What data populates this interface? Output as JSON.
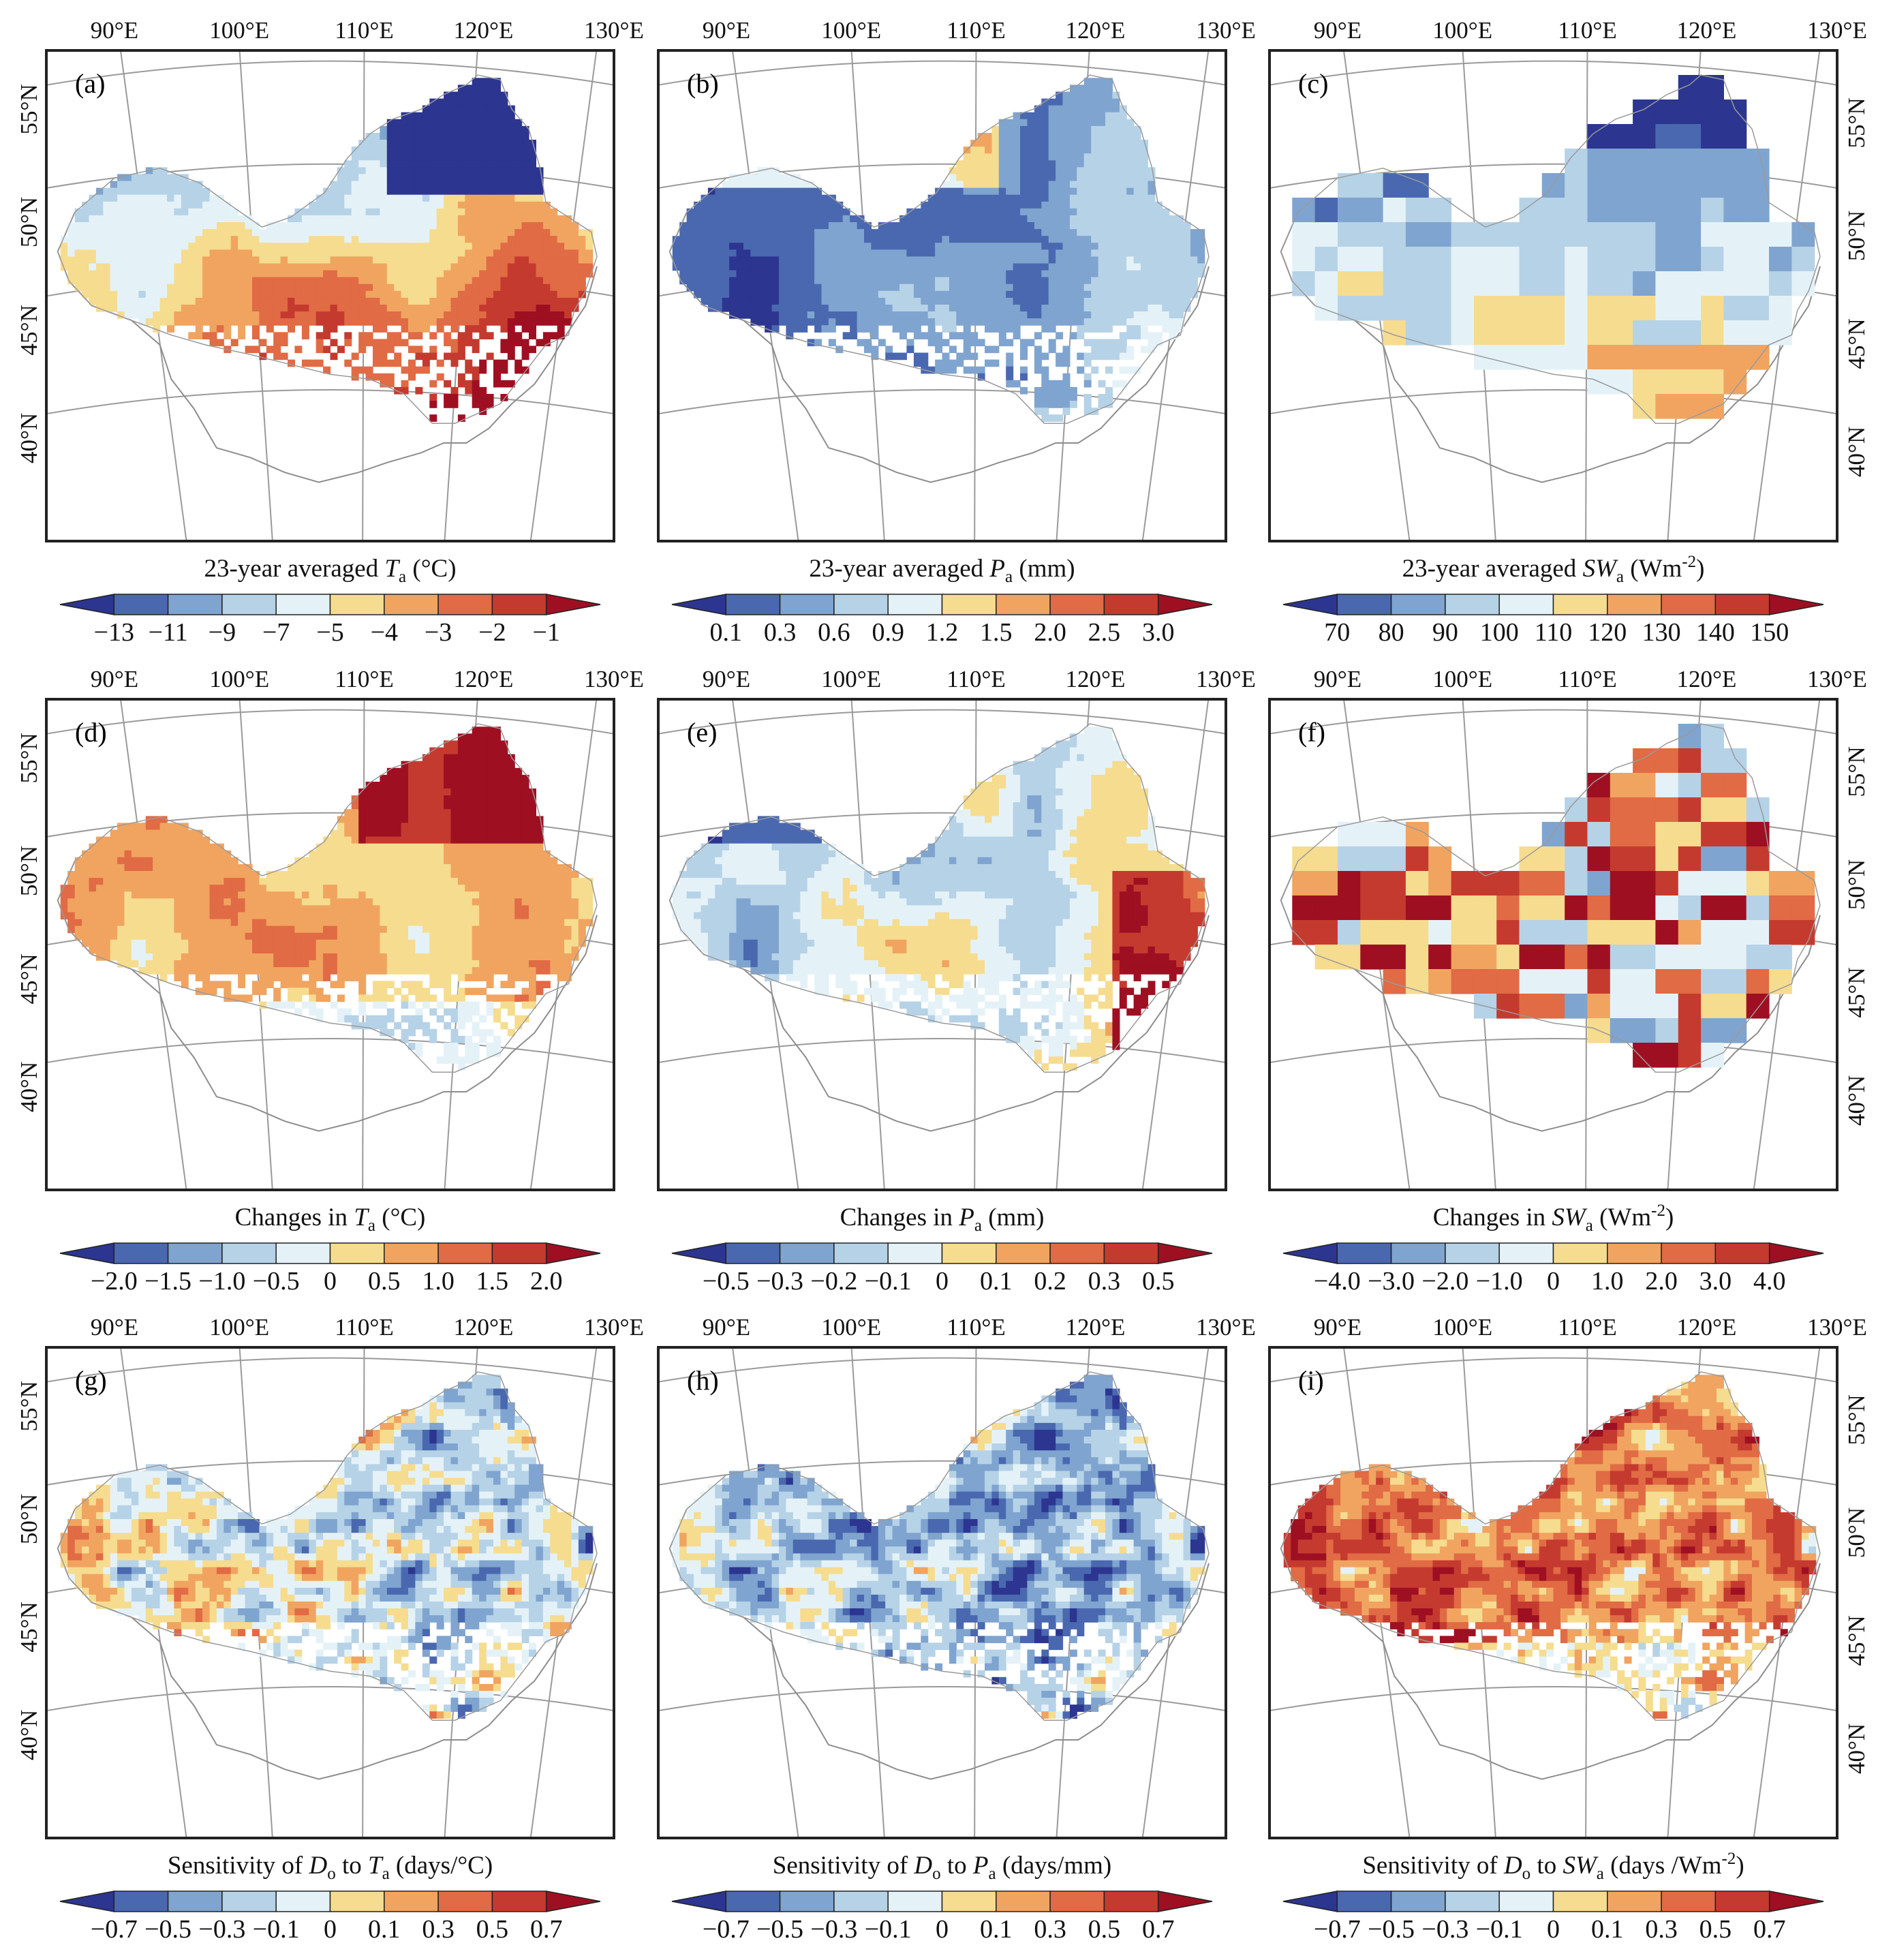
{
  "figure": {
    "longitude_labels": [
      "90°E",
      "100°E",
      "110°E",
      "120°E",
      "130°E"
    ],
    "latitude_labels": [
      "55°N",
      "50°N",
      "45°N",
      "40°N"
    ]
  },
  "palette": {
    "diverging": [
      "#2c3590",
      "#4a68b0",
      "#7fa4cf",
      "#b6d2e7",
      "#e4f2f8",
      "#f6dc8f",
      "#f0a460",
      "#e06b44",
      "#c53a2f",
      "#9f0f22"
    ],
    "positive": [
      "#4a68b0",
      "#7fa4cf",
      "#b6d2e7",
      "#e4f2f8",
      "#f6dc8f",
      "#f0a460",
      "#e06b44",
      "#c53a2f",
      "#9f0f22"
    ]
  },
  "panels": [
    {
      "letter": "(a)",
      "caption_pre": "23-year averaged ",
      "var": "T",
      "sub": "a",
      "unit": " (°C)",
      "sup": "",
      "unit_post": "",
      "ticks": [
        "−13",
        "−11",
        "−9",
        "−7",
        "−5",
        "−4",
        "−3",
        "−2",
        "−1"
      ],
      "pattern": "temp",
      "show_left_lat": true,
      "show_right_lat": false
    },
    {
      "letter": "(b)",
      "caption_pre": "23-year averaged ",
      "var": "P",
      "sub": "a",
      "unit": " (mm)",
      "sup": "",
      "unit_post": "",
      "ticks": [
        "0.1",
        "0.3",
        "0.6",
        "0.9",
        "1.2",
        "1.5",
        "2.0",
        "2.5",
        "3.0"
      ],
      "pattern": "precip",
      "show_left_lat": false,
      "show_right_lat": false
    },
    {
      "letter": "(c)",
      "caption_pre": "23-year averaged ",
      "var": "SW",
      "sub": "a",
      "unit": " (Wm",
      "sup": "-2",
      "unit_post": ")",
      "ticks": [
        "70",
        "80",
        "90",
        "100",
        "110",
        "120",
        "130",
        "140",
        "150"
      ],
      "pattern": "swblock",
      "show_left_lat": false,
      "show_right_lat": true
    },
    {
      "letter": "(d)",
      "caption_pre": "Changes in ",
      "var": "T",
      "sub": "a",
      "unit": " (°C)",
      "sup": "",
      "unit_post": "",
      "ticks": [
        "−2.0",
        "−1.5",
        "−1.0",
        "−0.5",
        "0",
        "0.5",
        "1.0",
        "1.5",
        "2.0"
      ],
      "pattern": "warm",
      "show_left_lat": true,
      "show_right_lat": false
    },
    {
      "letter": "(e)",
      "caption_pre": "Changes in ",
      "var": "P",
      "sub": "a",
      "unit": " (mm)",
      "sup": "",
      "unit_post": "",
      "ticks": [
        "−0.5",
        "−0.3",
        "−0.2",
        "−0.1",
        "0",
        "0.1",
        "0.2",
        "0.3",
        "0.5"
      ],
      "pattern": "mixed",
      "show_left_lat": false,
      "show_right_lat": false
    },
    {
      "letter": "(f)",
      "caption_pre": "Changes in ",
      "var": "SW",
      "sub": "a",
      "unit": " (Wm",
      "sup": "-2",
      "unit_post": ")",
      "ticks": [
        "−4.0",
        "−3.0",
        "−2.0",
        "−1.0",
        "0",
        "1.0",
        "2.0",
        "3.0",
        "4.0"
      ],
      "pattern": "swchange",
      "show_left_lat": false,
      "show_right_lat": true
    },
    {
      "letter": "(g)",
      "caption_pre": "Sensitivity of ",
      "var": "D",
      "sub": "o",
      "mid": " to ",
      "var2": "T",
      "sub2": "a",
      "unit": " (days/°C)",
      "sup": "",
      "unit_post": "",
      "ticks": [
        "−0.7",
        "−0.5",
        "−0.3",
        "−0.1",
        "0",
        "0.1",
        "0.3",
        "0.5",
        "0.7"
      ],
      "pattern": "noisyMixed",
      "show_left_lat": true,
      "show_right_lat": false
    },
    {
      "letter": "(h)",
      "caption_pre": "Sensitivity of ",
      "var": "D",
      "sub": "o",
      "mid": " to ",
      "var2": "P",
      "sub2": "a",
      "unit": " (days/mm)",
      "sup": "",
      "unit_post": "",
      "ticks": [
        "−0.7",
        "−0.5",
        "−0.3",
        "−0.1",
        "0",
        "0.1",
        "0.3",
        "0.5",
        "0.7"
      ],
      "pattern": "noisyBlue",
      "show_left_lat": false,
      "show_right_lat": false
    },
    {
      "letter": "(i)",
      "caption_pre": "Sensitivity of ",
      "var": "D",
      "sub": "o",
      "mid": " to ",
      "var2": "SW",
      "sub2": "a",
      "unit": " (days /Wm",
      "sup": "-2",
      "unit_post": ")",
      "ticks": [
        "−0.7",
        "−0.5",
        "−0.3",
        "−0.1",
        "0",
        "0.1",
        "0.3",
        "0.5",
        "0.7"
      ],
      "pattern": "noisyRed",
      "show_left_lat": false,
      "show_right_lat": true
    }
  ]
}
